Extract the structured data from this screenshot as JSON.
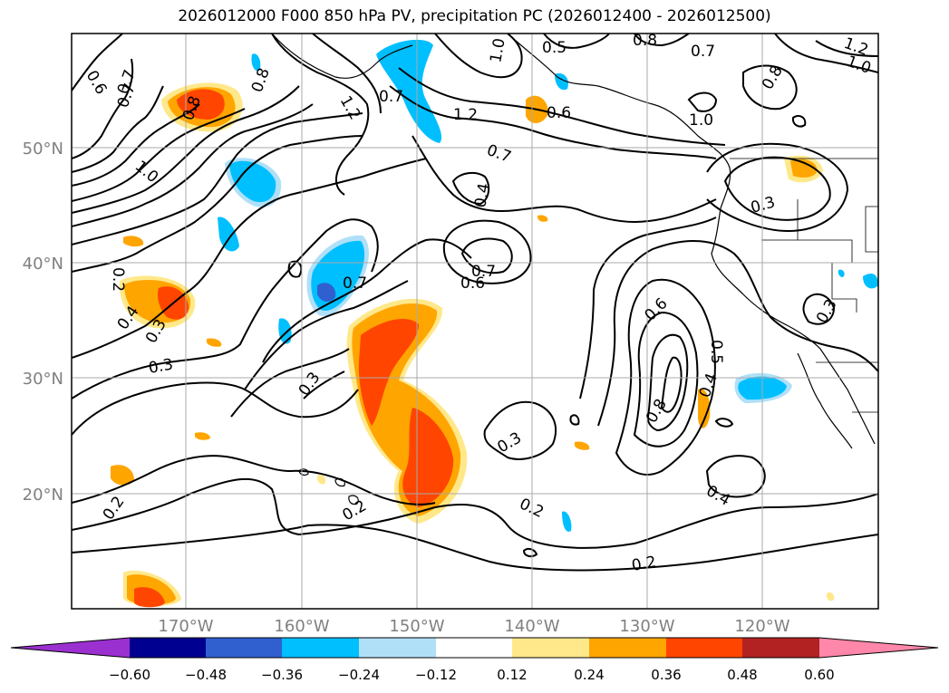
{
  "title": "2026012000 F000 850 hPa PV, precipitation PC (2026012400 - 2026012500)",
  "map": {
    "lat_labels": [
      "50°N",
      "40°N",
      "30°N",
      "20°N"
    ],
    "lon_labels": [
      "170°W",
      "160°W",
      "150°W",
      "140°W",
      "130°W",
      "120°W"
    ],
    "label_color": "#808080",
    "grid": true
  },
  "contour_labels": [
    "0.8",
    "0.7",
    "1.0",
    "0.5",
    "1.2",
    "0.6",
    "0.7",
    "1.0",
    "1.2",
    "0.8",
    "0.7",
    "1.0",
    "0.6",
    "0.8",
    "1.2",
    "0.7",
    "0.8",
    "1.0",
    "0.7",
    "0.4",
    "0.7",
    "0.6",
    "0.7",
    "0.2",
    "0.4",
    "0.3",
    "0.3",
    "0.3",
    "0.6",
    "0.5",
    "0.4",
    "0.8",
    "0.3",
    "0.3",
    "0.2",
    "0.2",
    "0.4",
    "0.2",
    "0.2",
    "0.3"
  ],
  "colorbar": {
    "ticks": [
      "−0.60",
      "−0.48",
      "−0.36",
      "−0.24",
      "−0.12",
      "0.12",
      "0.24",
      "0.36",
      "0.48",
      "0.60"
    ],
    "colors": [
      "#9b30d0",
      "#000090",
      "#3060d0",
      "#00bfff",
      "#b0e0f8",
      "#ffffff",
      "#ffe88a",
      "#ffa500",
      "#ff4500",
      "#b22222",
      "#ff88aa"
    ]
  }
}
